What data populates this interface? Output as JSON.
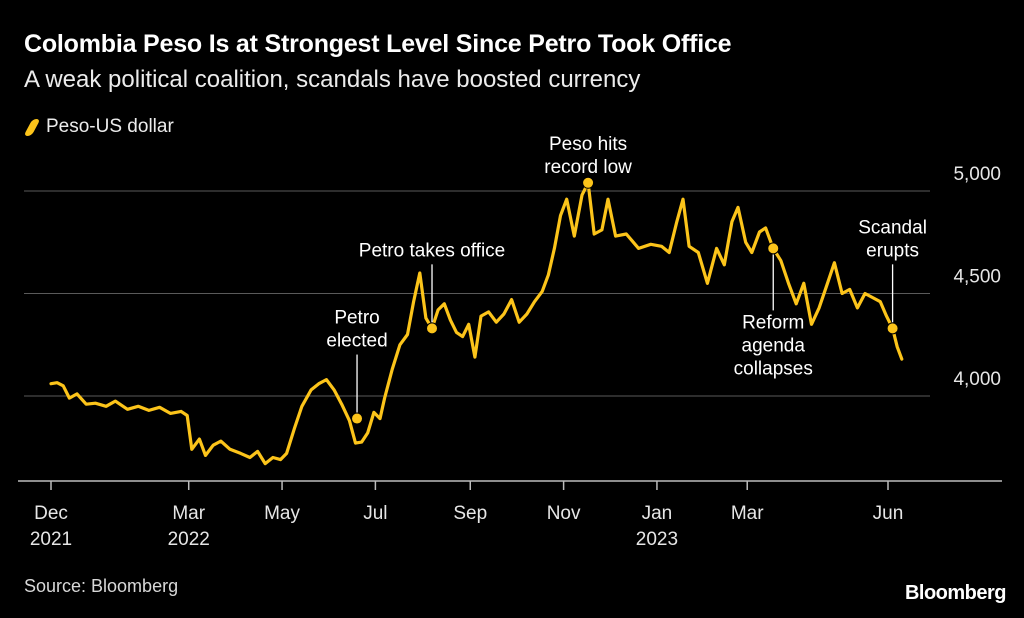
{
  "chart_data": {
    "type": "line",
    "title": "Colombia Peso Is at Strongest Level Since Petro Took Office",
    "subtitle": "A weak political coalition, scandals have boosted currency",
    "series": [
      {
        "name": "Peso-US dollar",
        "points": [
          [
            "2021-12-01",
            4060
          ],
          [
            "2021-12-05",
            4065
          ],
          [
            "2021-12-09",
            4050
          ],
          [
            "2021-12-13",
            3990
          ],
          [
            "2021-12-18",
            4010
          ],
          [
            "2021-12-24",
            3960
          ],
          [
            "2021-12-30",
            3965
          ],
          [
            "2022-01-06",
            3950
          ],
          [
            "2022-01-12",
            3975
          ],
          [
            "2022-01-20",
            3935
          ],
          [
            "2022-01-27",
            3950
          ],
          [
            "2022-02-03",
            3930
          ],
          [
            "2022-02-10",
            3945
          ],
          [
            "2022-02-17",
            3915
          ],
          [
            "2022-02-24",
            3925
          ],
          [
            "2022-02-28",
            3905
          ],
          [
            "2022-03-03",
            3740
          ],
          [
            "2022-03-08",
            3790
          ],
          [
            "2022-03-12",
            3710
          ],
          [
            "2022-03-17",
            3760
          ],
          [
            "2022-03-22",
            3780
          ],
          [
            "2022-03-28",
            3740
          ],
          [
            "2022-04-04",
            3720
          ],
          [
            "2022-04-10",
            3700
          ],
          [
            "2022-04-15",
            3730
          ],
          [
            "2022-04-20",
            3670
          ],
          [
            "2022-04-25",
            3700
          ],
          [
            "2022-04-30",
            3690
          ],
          [
            "2022-05-04",
            3720
          ],
          [
            "2022-05-09",
            3840
          ],
          [
            "2022-05-14",
            3950
          ],
          [
            "2022-05-20",
            4030
          ],
          [
            "2022-05-25",
            4060
          ],
          [
            "2022-05-30",
            4080
          ],
          [
            "2022-06-04",
            4030
          ],
          [
            "2022-06-09",
            3960
          ],
          [
            "2022-06-14",
            3880
          ],
          [
            "2022-06-18",
            3770
          ],
          [
            "2022-06-22",
            3775
          ],
          [
            "2022-06-26",
            3820
          ],
          [
            "2022-06-30",
            3920
          ],
          [
            "2022-07-04",
            3890
          ],
          [
            "2022-07-07",
            3990
          ],
          [
            "2022-07-12",
            4130
          ],
          [
            "2022-07-17",
            4250
          ],
          [
            "2022-07-22",
            4300
          ],
          [
            "2022-07-26",
            4460
          ],
          [
            "2022-07-30",
            4600
          ],
          [
            "2022-08-03",
            4380
          ],
          [
            "2022-08-07",
            4330
          ],
          [
            "2022-08-11",
            4420
          ],
          [
            "2022-08-15",
            4450
          ],
          [
            "2022-08-19",
            4370
          ],
          [
            "2022-08-23",
            4310
          ],
          [
            "2022-08-27",
            4290
          ],
          [
            "2022-08-31",
            4350
          ],
          [
            "2022-09-04",
            4190
          ],
          [
            "2022-09-08",
            4390
          ],
          [
            "2022-09-13",
            4410
          ],
          [
            "2022-09-18",
            4360
          ],
          [
            "2022-09-23",
            4400
          ],
          [
            "2022-09-28",
            4470
          ],
          [
            "2022-10-03",
            4360
          ],
          [
            "2022-10-08",
            4400
          ],
          [
            "2022-10-13",
            4460
          ],
          [
            "2022-10-18",
            4510
          ],
          [
            "2022-10-22",
            4590
          ],
          [
            "2022-10-26",
            4720
          ],
          [
            "2022-10-30",
            4880
          ],
          [
            "2022-11-03",
            4960
          ],
          [
            "2022-11-08",
            4780
          ],
          [
            "2022-11-13",
            4980
          ],
          [
            "2022-11-17",
            5040
          ],
          [
            "2022-11-21",
            4790
          ],
          [
            "2022-11-26",
            4810
          ],
          [
            "2022-11-30",
            4960
          ],
          [
            "2022-12-05",
            4780
          ],
          [
            "2022-12-12",
            4790
          ],
          [
            "2022-12-20",
            4720
          ],
          [
            "2022-12-28",
            4740
          ],
          [
            "2023-01-04",
            4730
          ],
          [
            "2023-01-09",
            4700
          ],
          [
            "2023-01-14",
            4850
          ],
          [
            "2023-01-18",
            4960
          ],
          [
            "2023-01-22",
            4730
          ],
          [
            "2023-01-28",
            4700
          ],
          [
            "2023-02-03",
            4550
          ],
          [
            "2023-02-09",
            4720
          ],
          [
            "2023-02-14",
            4640
          ],
          [
            "2023-02-19",
            4850
          ],
          [
            "2023-02-23",
            4920
          ],
          [
            "2023-02-28",
            4750
          ],
          [
            "2023-03-04",
            4700
          ],
          [
            "2023-03-09",
            4800
          ],
          [
            "2023-03-13",
            4820
          ],
          [
            "2023-03-18",
            4720
          ],
          [
            "2023-03-23",
            4660
          ],
          [
            "2023-03-28",
            4550
          ],
          [
            "2023-04-02",
            4450
          ],
          [
            "2023-04-07",
            4550
          ],
          [
            "2023-04-12",
            4350
          ],
          [
            "2023-04-17",
            4430
          ],
          [
            "2023-04-22",
            4540
          ],
          [
            "2023-04-27",
            4650
          ],
          [
            "2023-05-02",
            4500
          ],
          [
            "2023-05-07",
            4520
          ],
          [
            "2023-05-12",
            4430
          ],
          [
            "2023-05-17",
            4500
          ],
          [
            "2023-05-22",
            4480
          ],
          [
            "2023-05-27",
            4460
          ],
          [
            "2023-05-31",
            4390
          ],
          [
            "2023-06-04",
            4330
          ],
          [
            "2023-06-07",
            4240
          ],
          [
            "2023-06-10",
            4180
          ]
        ]
      }
    ],
    "x_range": [
      "2021-11-24",
      "2023-06-27"
    ],
    "x_ticks": [
      {
        "date": "2021-12-01",
        "label": "Dec",
        "sub": "2021"
      },
      {
        "date": "2022-03-01",
        "label": "Mar",
        "sub": "2022"
      },
      {
        "date": "2022-05-01",
        "label": "May",
        "sub": ""
      },
      {
        "date": "2022-07-01",
        "label": "Jul",
        "sub": ""
      },
      {
        "date": "2022-09-01",
        "label": "Sep",
        "sub": ""
      },
      {
        "date": "2022-11-01",
        "label": "Nov",
        "sub": ""
      },
      {
        "date": "2023-01-01",
        "label": "Jan",
        "sub": "2023"
      },
      {
        "date": "2023-03-01",
        "label": "Mar",
        "sub": ""
      },
      {
        "date": "2023-06-01",
        "label": "Jun",
        "sub": ""
      }
    ],
    "y_range": [
      3650,
      5110
    ],
    "y_ticks": [
      {
        "value": 4000,
        "label": "4,000"
      },
      {
        "value": 4500,
        "label": "4,500"
      },
      {
        "value": 5000,
        "label": "5,000"
      }
    ],
    "grid": true,
    "legend": "top-left",
    "line_color": "#fcc41a",
    "annotations": [
      {
        "date": "2022-06-19",
        "value": 3890,
        "lines": [
          "Petro",
          "elected"
        ],
        "text_pos": "above"
      },
      {
        "date": "2022-08-07",
        "value": 4330,
        "lines": [
          "Petro takes office"
        ],
        "text_pos": "above"
      },
      {
        "date": "2022-11-17",
        "value": 5040,
        "lines": [
          "Peso hits",
          "record low"
        ],
        "text_pos": "above"
      },
      {
        "date": "2023-03-18",
        "value": 4720,
        "lines": [
          "Reform",
          "agenda",
          "collapses"
        ],
        "text_pos": "below"
      },
      {
        "date": "2023-06-04",
        "value": 4330,
        "lines": [
          "Scandal",
          "erupts"
        ],
        "text_pos": "above"
      }
    ]
  },
  "legend_label": "Peso-US dollar",
  "source": "Source: Bloomberg",
  "brand": "Bloomberg"
}
